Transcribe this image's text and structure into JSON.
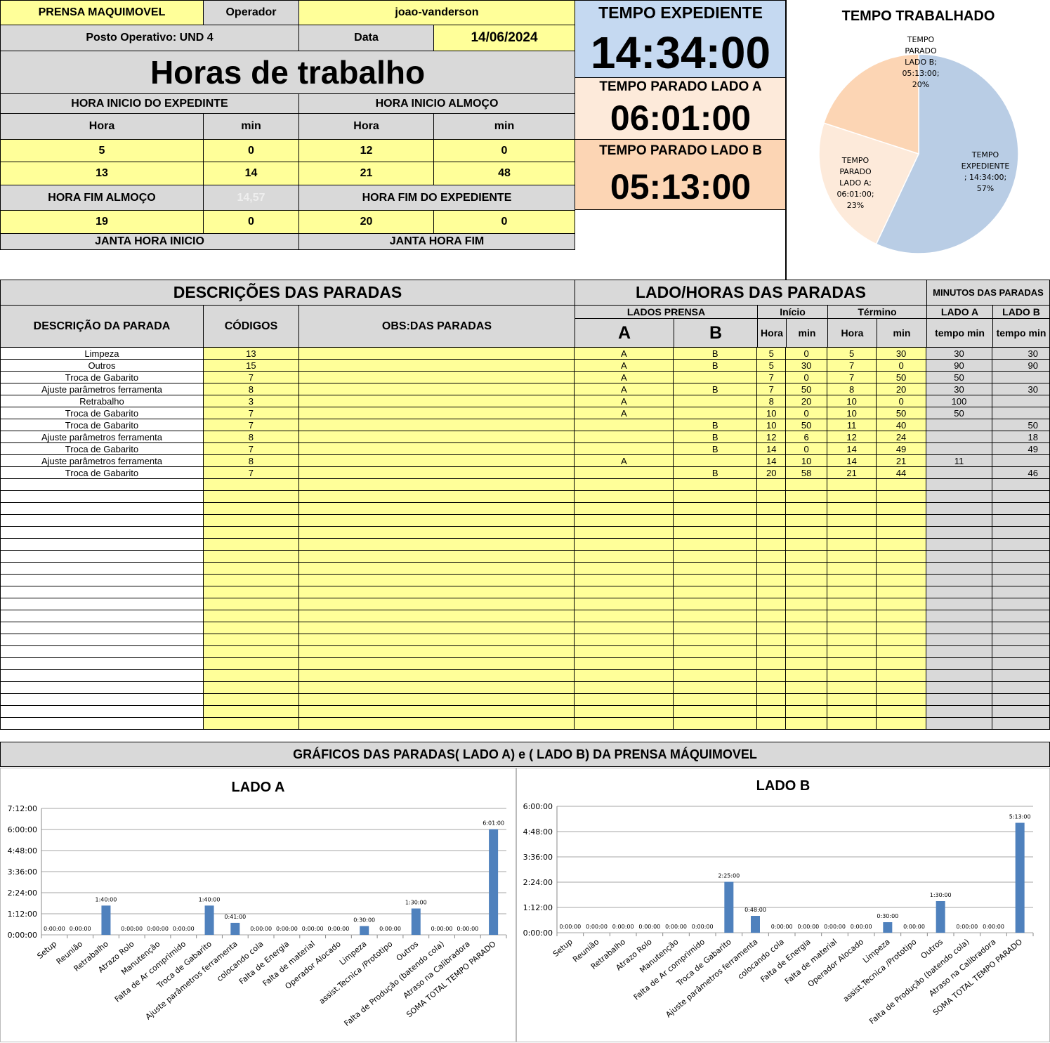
{
  "header": {
    "machine": "PRENSA MAQUIMOVEL",
    "operator_label": "Operador",
    "operator": "joao-vanderson",
    "post": "Posto Operativo: UND 4",
    "date_label": "Data",
    "date": "14/06/2024",
    "title": "Horas de trabalho"
  },
  "hours": {
    "inicio_expediente_label": "HORA INICIO DO EXPEDINTE",
    "inicio_almoco_label": "HORA INICIO ALMOÇO",
    "hora_label": "Hora",
    "min_label": "min",
    "row1": [
      "5",
      "0",
      "12",
      "0"
    ],
    "row2": [
      "13",
      "14",
      "21",
      "48"
    ],
    "fim_almoco_label": "HORA FIM ALMOÇO",
    "faded_value": "14,57",
    "fim_expediente_label": "HORA FIM DO EXPEDIENTE",
    "row3": [
      "19",
      "0",
      "20",
      "0"
    ],
    "janta_inicio_label": "JANTA HORA INICIO",
    "janta_fim_label": "JANTA HORA FIM"
  },
  "summary": {
    "expediente_label": "TEMPO EXPEDIENTE",
    "expediente": "14:34:00",
    "lado_a_label": "TEMPO PARADO LADO A",
    "lado_a": "06:01:00",
    "lado_b_label": "TEMPO PARADO LADO B",
    "lado_b": "05:13:00"
  },
  "pie": {
    "title": "TEMPO TRABALHADO",
    "slices": [
      {
        "label_lines": [
          "TEMPO",
          "EXPEDIENTE",
          "; 14:34:00;",
          "57%"
        ],
        "value": 57,
        "color": "#b9cde5"
      },
      {
        "label_lines": [
          "TEMPO",
          "PARADO",
          "LADO A;",
          "06:01:00;",
          "23%"
        ],
        "value": 23,
        "color": "#fdeada"
      },
      {
        "label_lines": [
          "TEMPO",
          "PARADO",
          "LADO B;",
          "05:13:00;",
          "20%"
        ],
        "value": 20,
        "color": "#fcd5b4"
      }
    ]
  },
  "stops": {
    "title_desc": "DESCRIÇÕES DAS PARADAS",
    "title_lado": "LADO/HORAS DAS PARADAS",
    "title_min": "MINUTOS DAS PARADAS",
    "col_desc": "DESCRIÇÃO DA PARADA",
    "col_codes": "CÓDIGOS",
    "col_obs": "OBS:DAS PARADAS",
    "lados_prensa": "LADOS PRENSA",
    "inicio": "Início",
    "termino": "Término",
    "lado_a": "LADO A",
    "lado_b": "LADO B",
    "a": "A",
    "b": "B",
    "hora": "Hora",
    "min": "min",
    "tempo_min": "tempo min",
    "rows": [
      [
        "Limpeza",
        "13",
        "",
        "A",
        "B",
        "5",
        "0",
        "5",
        "30",
        "30",
        "30"
      ],
      [
        "Outros",
        "15",
        "",
        "A",
        "B",
        "5",
        "30",
        "7",
        "0",
        "90",
        "90"
      ],
      [
        "Troca de Gabarito",
        "7",
        "",
        "A",
        "",
        "7",
        "0",
        "7",
        "50",
        "50",
        ""
      ],
      [
        "Ajuste parâmetros ferramenta",
        "8",
        "",
        "A",
        "B",
        "7",
        "50",
        "8",
        "20",
        "30",
        "30"
      ],
      [
        "Retrabalho",
        "3",
        "",
        "A",
        "",
        "8",
        "20",
        "10",
        "0",
        "100",
        ""
      ],
      [
        "Troca de Gabarito",
        "7",
        "",
        "A",
        "",
        "10",
        "0",
        "10",
        "50",
        "50",
        ""
      ],
      [
        "Troca de Gabarito",
        "7",
        "",
        "",
        "B",
        "10",
        "50",
        "11",
        "40",
        "",
        "50"
      ],
      [
        "Ajuste parâmetros ferramenta",
        "8",
        "",
        "",
        "B",
        "12",
        "6",
        "12",
        "24",
        "",
        "18"
      ],
      [
        "Troca de Gabarito",
        "7",
        "",
        "",
        "B",
        "14",
        "0",
        "14",
        "49",
        "",
        "49"
      ],
      [
        "Ajuste parâmetros ferramenta",
        "8",
        "",
        "A",
        "",
        "14",
        "10",
        "14",
        "21",
        "11",
        ""
      ],
      [
        "Troca de Gabarito",
        "7",
        "",
        "",
        "B",
        "20",
        "58",
        "21",
        "44",
        "",
        "46"
      ]
    ],
    "empty_rows": 21
  },
  "charts_banner": "GRÁFICOS DAS PARADAS( LADO A) e ( LADO B) DA PRENSA MÁQUIMOVEL",
  "chart_data": [
    {
      "type": "bar",
      "title": "LADO A",
      "categories": [
        "Setup",
        "Reunião",
        "Retrabalho",
        "Atrazo Rolo",
        "Manutenção",
        "Falta de Ar comprimido",
        "Troca de Gabarito",
        "Ajuste parâmetros ferramenta",
        "colocando cola",
        "Falta de Energia",
        "Falta de material",
        "Operador Alocado",
        "Limpeza",
        "assist.Tecnica /Prototipo",
        "Outros",
        "Falta de Produção (batendo cola)",
        "Atraso na Calibradora",
        "SOMA TOTAL TEMPO PARADO"
      ],
      "values": [
        0,
        0,
        100,
        0,
        0,
        0,
        100,
        41,
        0,
        0,
        0,
        0,
        30,
        0,
        90,
        0,
        0,
        361
      ],
      "data_labels": [
        "0:00:00",
        "0:00:00",
        "1:40:00",
        "0:00:00",
        "0:00:00",
        "0:00:00",
        "1:40:00",
        "0:41:00",
        "0:00:00",
        "0:00:00",
        "0:00:00",
        "0:00:00",
        "0:30:00",
        "0:00:00",
        "1:30:00",
        "0:00:00",
        "0:00:00",
        "6:01:00"
      ],
      "yticks": [
        "0:00:00",
        "1:12:00",
        "2:24:00",
        "3:36:00",
        "4:48:00",
        "6:00:00",
        "7:12:00"
      ],
      "ylim": [
        0,
        432
      ],
      "bar_color": "#4f81bd"
    },
    {
      "type": "bar",
      "title": "LADO B",
      "categories": [
        "Setup",
        "Reunião",
        "Retrabalho",
        "Atrazo Rolo",
        "Manutenção",
        "Falta de Ar comprimido",
        "Troca de Gabarito",
        "Ajuste parâmetros ferramenta",
        "colocando cola",
        "Falta de Energia",
        "Falta de material",
        "Operador Alocado",
        "Limpeza",
        "assist.Tecnica /Prototipo",
        "Outros",
        "Falta de Produção (batendo cola)",
        "Atraso na Calibradora",
        "SOMA TOTAL TEMPO PARADO"
      ],
      "values": [
        0,
        0,
        0,
        0,
        0,
        0,
        145,
        48,
        0,
        0,
        0,
        0,
        30,
        0,
        90,
        0,
        0,
        313
      ],
      "data_labels": [
        "0:00:00",
        "0:00:00",
        "0:00:00",
        "0:00:00",
        "0:00:00",
        "0:00:00",
        "2:25:00",
        "0:48:00",
        "0:00:00",
        "0:00:00",
        "0:00:00",
        "0:00:00",
        "0:30:00",
        "0:00:00",
        "1:30:00",
        "0:00:00",
        "0:00:00",
        "5:13:00"
      ],
      "yticks": [
        "0:00:00",
        "1:12:00",
        "2:24:00",
        "3:36:00",
        "4:48:00",
        "6:00:00"
      ],
      "ylim": [
        0,
        360
      ],
      "bar_color": "#4f81bd"
    }
  ]
}
